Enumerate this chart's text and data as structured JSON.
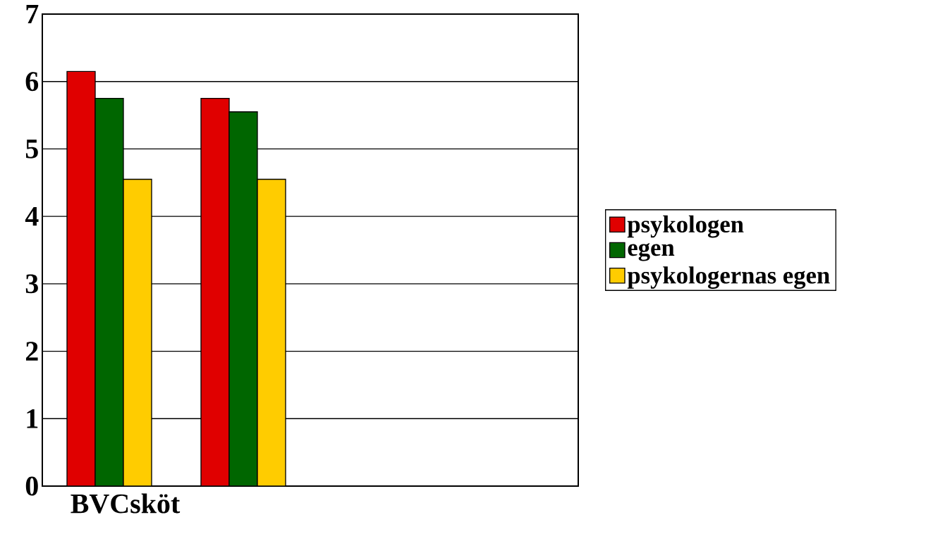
{
  "chart_data": {
    "type": "bar",
    "categories": [
      "BVCsköt",
      null,
      null,
      null
    ],
    "series": [
      {
        "name": "psykologen",
        "color": "#e00000",
        "values": [
          6.15,
          5.75,
          null,
          null
        ]
      },
      {
        "name": "egen",
        "color": "#006600",
        "values": [
          5.75,
          5.55,
          null,
          null
        ]
      },
      {
        "name": "psykologernas egen",
        "color": "#ffcc00",
        "values": [
          4.55,
          4.55,
          null,
          null
        ]
      }
    ],
    "ylim": [
      0,
      7
    ],
    "yticks": [
      0,
      1,
      2,
      3,
      4,
      5,
      6,
      7
    ],
    "grid": "y",
    "legend": "right"
  }
}
